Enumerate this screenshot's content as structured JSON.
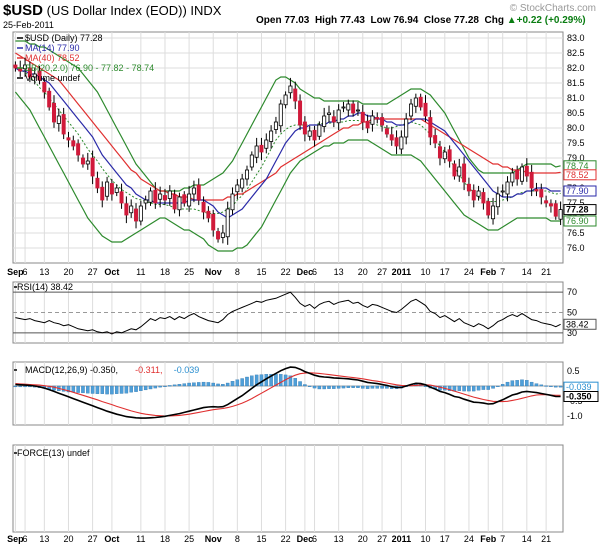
{
  "header": {
    "symbol": "$USD",
    "name": "(US Dollar Index (EOD))",
    "exchange": "INDX",
    "date": "25-Feb-2011",
    "open_label": "Open",
    "open": "77.03",
    "high_label": "High",
    "high": "77.43",
    "low_label": "Low",
    "low": "76.94",
    "close_label": "Close",
    "close": "77.28",
    "chg_label": "Chg",
    "chg": "+0.22 (+0.29%)",
    "chg_arrow": "▲",
    "copyright": "© StockCharts.com"
  },
  "colors": {
    "up": "#ffffff",
    "down": "#d01a3a",
    "candle_outline": "#000000",
    "ma14": "#2a2aa8",
    "ma40": "#e03030",
    "bb": "#2d8a2d",
    "bb_mid": "#2d8a2d",
    "rsi": "#000000",
    "macd": "#000000",
    "signal": "#e03030",
    "hist": "#4f9fd8",
    "grid": "#dddddd"
  },
  "chart_data": [
    {
      "panel": "price",
      "type": "candlestick",
      "legend": [
        {
          "text": "$USD (Daily) 77.28",
          "color": "#000000"
        },
        {
          "text": "MA(14) 77.90",
          "color": "#2a2aa8"
        },
        {
          "text": "MA(40) 78.52",
          "color": "#e03030"
        },
        {
          "text": "BB(20,2.0) 76.90 - 77.82 - 78.74",
          "color": "#2d8a2d"
        },
        {
          "text": "Volume undef",
          "color": "#000000"
        }
      ],
      "ylim": [
        75.5,
        83.2
      ],
      "y_ticks": [
        "83.0",
        "82.5",
        "82.0",
        "81.5",
        "81.0",
        "80.5",
        "80.0",
        "79.5",
        "79.0",
        "78.5",
        "78.0",
        "77.5",
        "77.0",
        "76.5",
        "76.0"
      ],
      "right_labels": [
        {
          "text": "78.74",
          "value": 78.74,
          "color": "#2d8a2d"
        },
        {
          "text": "78.52",
          "value": 78.52,
          "color": "#e03030"
        },
        {
          "text": "77.90",
          "value": 77.9,
          "color": "#2a2aa8"
        },
        {
          "text": "77.28",
          "value": 77.28,
          "color": "#000000"
        },
        {
          "text": "76.90",
          "value": 76.9,
          "color": "#2d8a2d"
        }
      ],
      "closes": [
        82.0,
        81.9,
        82.1,
        81.7,
        81.8,
        81.6,
        81.2,
        80.7,
        80.2,
        80.4,
        79.8,
        79.6,
        79.4,
        79.1,
        78.8,
        78.9,
        78.4,
        78.0,
        77.6,
        78.2,
        77.8,
        78.0,
        77.5,
        77.1,
        77.4,
        76.9,
        77.4,
        77.6,
        77.9,
        77.5,
        77.8,
        77.6,
        77.9,
        77.3,
        77.7,
        77.5,
        77.8,
        78.0,
        77.6,
        77.2,
        77.0,
        76.6,
        76.3,
        76.5,
        77.3,
        77.8,
        78.1,
        78.3,
        78.6,
        79.1,
        79.4,
        79.2,
        79.6,
        79.9,
        80.2,
        80.8,
        81.1,
        81.4,
        80.9,
        80.1,
        79.8,
        79.9,
        79.6,
        80.1,
        80.4,
        80.5,
        80.2,
        80.6,
        80.7,
        80.8,
        80.5,
        80.6,
        80.2,
        80.0,
        80.4,
        80.3,
        80.1,
        79.8,
        79.6,
        79.4,
        79.7,
        80.3,
        80.8,
        81.0,
        80.7,
        80.4,
        79.7,
        79.5,
        79.0,
        79.2,
        78.9,
        78.4,
        78.7,
        78.2,
        77.9,
        77.6,
        77.9,
        77.5,
        77.1,
        77.4,
        77.8,
        77.9,
        78.2,
        78.5,
        78.3,
        78.7,
        78.4,
        78.0,
        77.9,
        77.7,
        77.5,
        77.4,
        77.06,
        77.28
      ],
      "ma14": [
        82.0,
        81.9,
        81.9,
        81.8,
        81.8,
        81.7,
        81.6,
        81.5,
        81.3,
        81.1,
        80.9,
        80.7,
        80.5,
        80.3,
        80.1,
        79.9,
        79.7,
        79.4,
        79.1,
        78.9,
        78.7,
        78.5,
        78.3,
        78.1,
        78.0,
        77.8,
        77.7,
        77.6,
        77.6,
        77.5,
        77.5,
        77.5,
        77.5,
        77.5,
        77.5,
        77.5,
        77.6,
        77.6,
        77.6,
        77.6,
        77.5,
        77.4,
        77.2,
        77.1,
        77.0,
        77.1,
        77.2,
        77.3,
        77.5,
        77.7,
        77.9,
        78.1,
        78.3,
        78.6,
        78.9,
        79.2,
        79.5,
        79.7,
        79.9,
        80.0,
        80.0,
        80.1,
        80.1,
        80.1,
        80.1,
        80.2,
        80.2,
        80.3,
        80.3,
        80.4,
        80.4,
        80.5,
        80.5,
        80.4,
        80.4,
        80.3,
        80.3,
        80.2,
        80.2,
        80.1,
        80.1,
        80.1,
        80.2,
        80.3,
        80.3,
        80.3,
        80.2,
        80.1,
        80.0,
        79.9,
        79.7,
        79.5,
        79.3,
        79.1,
        78.9,
        78.7,
        78.5,
        78.3,
        78.1,
        77.9,
        77.8,
        77.7,
        77.7,
        77.7,
        77.8,
        77.8,
        77.9,
        77.9,
        78.0,
        78.0,
        78.0,
        77.9,
        77.9,
        77.9
      ],
      "ma40": [
        82.5,
        82.4,
        82.3,
        82.2,
        82.1,
        82.0,
        81.9,
        81.8,
        81.7,
        81.6,
        81.4,
        81.2,
        81.0,
        80.8,
        80.6,
        80.4,
        80.2,
        80.0,
        79.8,
        79.6,
        79.4,
        79.2,
        79.0,
        78.8,
        78.6,
        78.5,
        78.3,
        78.2,
        78.1,
        78.0,
        77.9,
        77.9,
        77.8,
        77.8,
        77.7,
        77.7,
        77.7,
        77.6,
        77.6,
        77.6,
        77.6,
        77.6,
        77.6,
        77.6,
        77.7,
        77.7,
        77.8,
        77.8,
        77.9,
        78.0,
        78.1,
        78.2,
        78.3,
        78.4,
        78.5,
        78.7,
        78.8,
        78.9,
        79.0,
        79.1,
        79.2,
        79.3,
        79.4,
        79.5,
        79.6,
        79.7,
        79.8,
        79.9,
        80.0,
        80.0,
        80.1,
        80.1,
        80.2,
        80.2,
        80.3,
        80.3,
        80.3,
        80.3,
        80.3,
        80.3,
        80.3,
        80.3,
        80.3,
        80.3,
        80.3,
        80.2,
        80.1,
        80.0,
        79.9,
        79.8,
        79.7,
        79.6,
        79.5,
        79.4,
        79.3,
        79.2,
        79.1,
        79.0,
        78.9,
        78.8,
        78.8,
        78.7,
        78.7,
        78.6,
        78.6,
        78.6,
        78.5,
        78.5,
        78.5,
        78.5,
        78.5,
        78.5,
        78.5,
        78.52
      ],
      "bb_upper": [
        82.9,
        82.9,
        82.9,
        82.8,
        82.8,
        82.7,
        82.7,
        82.6,
        82.5,
        82.4,
        82.3,
        82.2,
        82.1,
        82.0,
        81.8,
        81.6,
        81.4,
        81.2,
        80.9,
        80.6,
        80.3,
        80.0,
        79.7,
        79.4,
        79.1,
        78.8,
        78.6,
        78.4,
        78.2,
        78.0,
        77.9,
        77.9,
        77.9,
        77.9,
        77.9,
        78.0,
        78.0,
        78.1,
        78.1,
        78.1,
        78.2,
        78.3,
        78.4,
        78.5,
        78.7,
        78.9,
        79.2,
        79.5,
        79.8,
        80.1,
        80.4,
        80.7,
        81.0,
        81.3,
        81.6,
        81.7,
        81.7,
        81.6,
        81.5,
        81.3,
        81.2,
        81.1,
        81.0,
        81.0,
        80.9,
        80.9,
        80.9,
        80.9,
        80.9,
        80.9,
        80.9,
        80.9,
        80.8,
        80.8,
        80.8,
        80.8,
        80.8,
        80.8,
        80.9,
        81.0,
        81.1,
        81.2,
        81.3,
        81.3,
        81.3,
        81.2,
        81.1,
        80.9,
        80.7,
        80.5,
        80.2,
        79.9,
        79.6,
        79.3,
        79.0,
        78.8,
        78.6,
        78.5,
        78.5,
        78.5,
        78.5,
        78.5,
        78.5,
        78.5,
        78.6,
        78.7,
        78.8,
        78.8,
        78.8,
        78.8,
        78.8,
        78.8,
        78.7,
        78.74
      ],
      "bb_lower": [
        81.2,
        81.0,
        80.8,
        80.6,
        80.3,
        80.0,
        79.7,
        79.4,
        79.1,
        78.8,
        78.5,
        78.2,
        77.9,
        77.6,
        77.3,
        77.0,
        76.8,
        76.6,
        76.4,
        76.3,
        76.2,
        76.2,
        76.2,
        76.3,
        76.4,
        76.5,
        76.6,
        76.7,
        76.8,
        76.9,
        77.0,
        77.0,
        76.9,
        76.8,
        76.7,
        76.6,
        76.6,
        76.5,
        76.4,
        76.3,
        76.1,
        76.0,
        75.9,
        75.9,
        75.9,
        75.9,
        76.0,
        76.0,
        76.1,
        76.3,
        76.5,
        76.7,
        77.0,
        77.3,
        77.6,
        77.9,
        78.2,
        78.5,
        78.7,
        78.9,
        79.0,
        79.1,
        79.2,
        79.3,
        79.4,
        79.4,
        79.5,
        79.5,
        79.5,
        79.6,
        79.6,
        79.6,
        79.6,
        79.6,
        79.5,
        79.4,
        79.3,
        79.2,
        79.1,
        79.1,
        79.1,
        79.1,
        79.1,
        79.0,
        78.9,
        78.7,
        78.5,
        78.3,
        78.1,
        77.9,
        77.7,
        77.5,
        77.3,
        77.1,
        77.0,
        76.9,
        76.8,
        76.7,
        76.6,
        76.6,
        76.6,
        76.7,
        76.8,
        76.9,
        77.0,
        77.0,
        77.0,
        77.0,
        77.0,
        77.0,
        77.0,
        76.9,
        76.9,
        76.9
      ]
    },
    {
      "panel": "rsi",
      "type": "line",
      "legend": [
        {
          "text": "RSI(14) 38.42",
          "color": "#000000"
        }
      ],
      "ylim": [
        20,
        80
      ],
      "y_ticks": [
        "70",
        "50",
        "30"
      ],
      "right_label": "38.42",
      "values": [
        45,
        44,
        43,
        44,
        42,
        41,
        40,
        42,
        40,
        39,
        37,
        38,
        36,
        34,
        33,
        32,
        33,
        31,
        30,
        31,
        29,
        31,
        30,
        32,
        34,
        33,
        36,
        40,
        44,
        42,
        45,
        44,
        46,
        43,
        46,
        44,
        47,
        49,
        46,
        44,
        42,
        41,
        40,
        43,
        48,
        51,
        53,
        55,
        57,
        59,
        61,
        60,
        62,
        63,
        64,
        66,
        68,
        70,
        65,
        59,
        56,
        58,
        54,
        58,
        60,
        61,
        58,
        60,
        61,
        62,
        59,
        60,
        57,
        55,
        58,
        57,
        55,
        53,
        51,
        50,
        53,
        57,
        61,
        63,
        60,
        57,
        51,
        49,
        45,
        47,
        44,
        41,
        44,
        40,
        38,
        36,
        39,
        37,
        34,
        37,
        41,
        43,
        46,
        48,
        46,
        49,
        46,
        43,
        42,
        40,
        39,
        38,
        36,
        38.42
      ]
    },
    {
      "panel": "macd",
      "type": "line",
      "legend": [
        {
          "text": "MACD(12,26,9) -0.350,",
          "color": "#000000"
        },
        {
          "text": "-0.311,",
          "color": "#e03030"
        },
        {
          "text": "-0.039",
          "color": "#2a8fd0"
        }
      ],
      "ylim": [
        -1.3,
        0.8
      ],
      "y_ticks": [
        "0.5",
        "0.0",
        "-0.5",
        "-1.0"
      ],
      "right_labels": [
        {
          "text": "-0.039",
          "value": -0.039,
          "color": "#2a8fd0"
        },
        {
          "text": "-0.350",
          "value": -0.35,
          "color": "#000000"
        }
      ],
      "macd": [
        0.05,
        0.04,
        0.03,
        0.02,
        0.0,
        -0.03,
        -0.07,
        -0.12,
        -0.18,
        -0.24,
        -0.3,
        -0.36,
        -0.42,
        -0.48,
        -0.54,
        -0.6,
        -0.66,
        -0.72,
        -0.78,
        -0.84,
        -0.89,
        -0.94,
        -0.98,
        -1.02,
        -1.04,
        -1.06,
        -1.07,
        -1.07,
        -1.06,
        -1.05,
        -1.03,
        -1.01,
        -0.98,
        -0.95,
        -0.92,
        -0.88,
        -0.84,
        -0.8,
        -0.76,
        -0.72,
        -0.7,
        -0.69,
        -0.7,
        -0.69,
        -0.62,
        -0.52,
        -0.42,
        -0.32,
        -0.2,
        -0.08,
        0.04,
        0.14,
        0.24,
        0.33,
        0.42,
        0.51,
        0.58,
        0.63,
        0.62,
        0.56,
        0.48,
        0.42,
        0.36,
        0.32,
        0.3,
        0.29,
        0.27,
        0.26,
        0.25,
        0.24,
        0.22,
        0.2,
        0.16,
        0.12,
        0.1,
        0.08,
        0.05,
        0.02,
        -0.02,
        -0.05,
        -0.05,
        0.0,
        0.05,
        0.09,
        0.08,
        0.04,
        -0.04,
        -0.1,
        -0.18,
        -0.22,
        -0.28,
        -0.35,
        -0.38,
        -0.44,
        -0.49,
        -0.54,
        -0.55,
        -0.57,
        -0.6,
        -0.59,
        -0.52,
        -0.46,
        -0.38,
        -0.3,
        -0.26,
        -0.2,
        -0.18,
        -0.2,
        -0.22,
        -0.25,
        -0.28,
        -0.31,
        -0.35,
        -0.35
      ],
      "signal": [
        0.08,
        0.07,
        0.06,
        0.05,
        0.04,
        0.03,
        0.01,
        -0.01,
        -0.04,
        -0.08,
        -0.12,
        -0.16,
        -0.21,
        -0.26,
        -0.31,
        -0.36,
        -0.41,
        -0.46,
        -0.52,
        -0.57,
        -0.62,
        -0.68,
        -0.73,
        -0.78,
        -0.83,
        -0.87,
        -0.91,
        -0.94,
        -0.96,
        -0.98,
        -0.99,
        -1.0,
        -1.0,
        -0.99,
        -0.98,
        -0.96,
        -0.94,
        -0.91,
        -0.88,
        -0.85,
        -0.82,
        -0.79,
        -0.77,
        -0.75,
        -0.72,
        -0.68,
        -0.63,
        -0.57,
        -0.5,
        -0.42,
        -0.33,
        -0.24,
        -0.15,
        -0.06,
        0.03,
        0.12,
        0.21,
        0.29,
        0.36,
        0.41,
        0.43,
        0.44,
        0.43,
        0.42,
        0.4,
        0.38,
        0.36,
        0.34,
        0.32,
        0.3,
        0.28,
        0.26,
        0.24,
        0.21,
        0.18,
        0.16,
        0.13,
        0.1,
        0.07,
        0.04,
        0.02,
        0.01,
        0.01,
        0.02,
        0.03,
        0.04,
        0.03,
        0.0,
        -0.04,
        -0.08,
        -0.12,
        -0.17,
        -0.22,
        -0.27,
        -0.32,
        -0.37,
        -0.41,
        -0.45,
        -0.48,
        -0.51,
        -0.52,
        -0.52,
        -0.51,
        -0.48,
        -0.45,
        -0.41,
        -0.37,
        -0.33,
        -0.3,
        -0.29,
        -0.29,
        -0.3,
        -0.31,
        -0.311
      ]
    },
    {
      "panel": "force",
      "type": "line",
      "legend": [
        {
          "text": "FORCE(13) undef",
          "color": "#000000"
        }
      ]
    }
  ],
  "x_axis": {
    "labels": [
      {
        "text": "Sep",
        "index": 0,
        "bold": true
      },
      {
        "text": "6",
        "index": 2
      },
      {
        "text": "13",
        "index": 6
      },
      {
        "text": "20",
        "index": 11
      },
      {
        "text": "27",
        "index": 16
      },
      {
        "text": "Oct",
        "index": 20,
        "bold": true
      },
      {
        "text": "11",
        "index": 26
      },
      {
        "text": "18",
        "index": 31
      },
      {
        "text": "25",
        "index": 36
      },
      {
        "text": "Nov",
        "index": 41,
        "bold": true
      },
      {
        "text": "8",
        "index": 46
      },
      {
        "text": "15",
        "index": 51
      },
      {
        "text": "22",
        "index": 56
      },
      {
        "text": "Dec",
        "index": 60,
        "bold": true
      },
      {
        "text": "6",
        "index": 62
      },
      {
        "text": "13",
        "index": 67
      },
      {
        "text": "20",
        "index": 72
      },
      {
        "text": "27",
        "index": 76
      },
      {
        "text": "2011",
        "index": 80,
        "bold": true
      },
      {
        "text": "10",
        "index": 85
      },
      {
        "text": "17",
        "index": 89
      },
      {
        "text": "24",
        "index": 94
      },
      {
        "text": "Feb",
        "index": 98,
        "bold": true
      },
      {
        "text": "7",
        "index": 101
      },
      {
        "text": "14",
        "index": 106
      },
      {
        "text": "21",
        "index": 110
      }
    ]
  }
}
